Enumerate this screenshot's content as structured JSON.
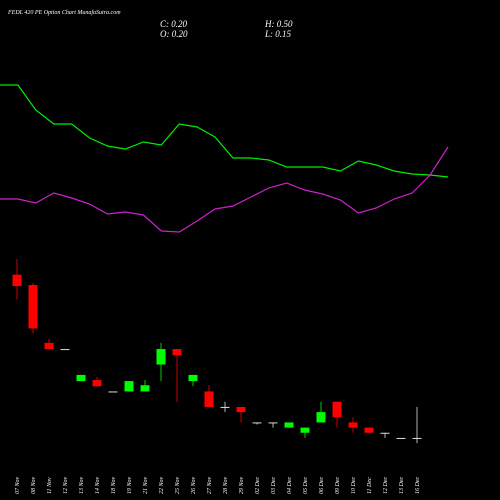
{
  "chart_data": {
    "type": "candlestick",
    "title": "FEDL 420 PE Option Chart MunafaSutra.com",
    "summary": {
      "close": "C: 0.20",
      "high": "H: 0.50",
      "open": "O: 0.20",
      "low": "L: 0.15"
    },
    "categories": [
      "07 Nov",
      "08 Nov",
      "11 Nov",
      "12 Nov",
      "13 Nov",
      "14 Nov",
      "18 Nov",
      "19 Nov",
      "21 Nov",
      "22 Nov",
      "25 Nov",
      "26 Nov",
      "27 Nov",
      "28 Nov",
      "29 Nov",
      "02 Dec",
      "03 Dec",
      "04 Dec",
      "05 Dec",
      "06 Dec",
      "09 Dec",
      "10 Dec",
      "11 Dec",
      "12 Dec",
      "13 Dec",
      "16 Dec"
    ],
    "open": [
      1.78,
      1.68,
      1.12,
      1.06,
      0.75,
      0.76,
      0.65,
      0.65,
      0.65,
      0.91,
      1.06,
      0.75,
      0.65,
      0.5,
      0.5,
      0.35,
      0.35,
      0.3,
      0.25,
      0.35,
      0.55,
      0.35,
      0.3,
      0.25,
      0.2,
      0.2
    ],
    "high": [
      1.93,
      1.7,
      1.16,
      1.06,
      0.81,
      0.79,
      0.65,
      0.75,
      0.76,
      1.12,
      1.06,
      0.81,
      0.71,
      0.55,
      0.5,
      0.35,
      0.35,
      0.35,
      0.3,
      0.55,
      0.55,
      0.4,
      0.3,
      0.25,
      0.2,
      0.5
    ],
    "low": [
      1.54,
      1.21,
      1.06,
      1.06,
      0.75,
      0.7,
      0.65,
      0.65,
      0.65,
      0.75,
      0.55,
      0.7,
      0.5,
      0.45,
      0.35,
      0.33,
      0.3,
      0.3,
      0.2,
      0.35,
      0.3,
      0.25,
      0.25,
      0.2,
      0.2,
      0.15
    ],
    "close": [
      1.67,
      1.26,
      1.06,
      1.06,
      0.81,
      0.7,
      0.65,
      0.75,
      0.71,
      1.06,
      1.0,
      0.81,
      0.5,
      0.5,
      0.45,
      0.35,
      0.35,
      0.35,
      0.3,
      0.45,
      0.4,
      0.3,
      0.25,
      0.25,
      0.2,
      0.2
    ],
    "up_color": "#00ff00",
    "down_color": "#ff0000",
    "flat_color": "#dddddd",
    "ylim": [
      0,
      2.2
    ],
    "lines": {
      "ylim": [
        0,
        100
      ],
      "series": [
        {
          "color": "#00ee00",
          "values": [
            82.5,
            82.5,
            70,
            63,
            63,
            56,
            52,
            50.5,
            54,
            52.5,
            63,
            61.5,
            56.5,
            46,
            46,
            45,
            41.5,
            41.5,
            41.5,
            39.5,
            44.5,
            42.5,
            39.5,
            38,
            37.5,
            36.5
          ]
        },
        {
          "color": "#cc22cc",
          "values": [
            25.5,
            25.5,
            23.5,
            28.5,
            26,
            23,
            18,
            19,
            17.5,
            9.5,
            9,
            14.5,
            20.5,
            22,
            26.5,
            31,
            33.5,
            30,
            28,
            25,
            18.5,
            21,
            25.5,
            28.5,
            37.5,
            51.5
          ]
        }
      ]
    }
  }
}
